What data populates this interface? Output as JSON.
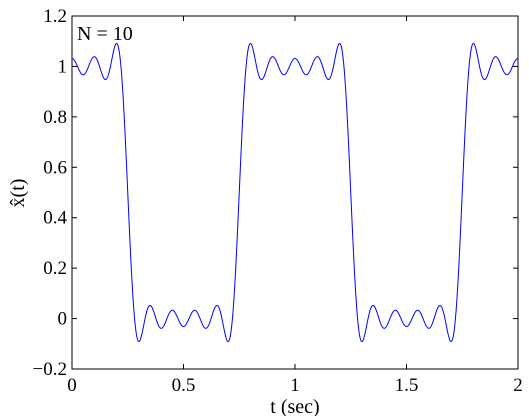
{
  "chart_data": {
    "type": "line",
    "title": "",
    "xlabel": "t (sec)",
    "ylabel": "x̂(t)",
    "xlim": [
      0,
      2
    ],
    "ylim": [
      -0.2,
      1.2
    ],
    "xticks": [
      "0",
      "0.5",
      "1",
      "1.5",
      "2"
    ],
    "yticks": [
      "−0.2",
      "0",
      "0.2",
      "0.4",
      "0.6",
      "0.8",
      "1",
      "1.2"
    ],
    "grid": false,
    "annotation": "N = 10",
    "series": [
      {
        "color": "#0000ff",
        "fourier_terms": 10,
        "period": 1.0,
        "dc": 0.5,
        "duty_cycle": 0.5,
        "high_interval_center": 0.0
      }
    ]
  }
}
